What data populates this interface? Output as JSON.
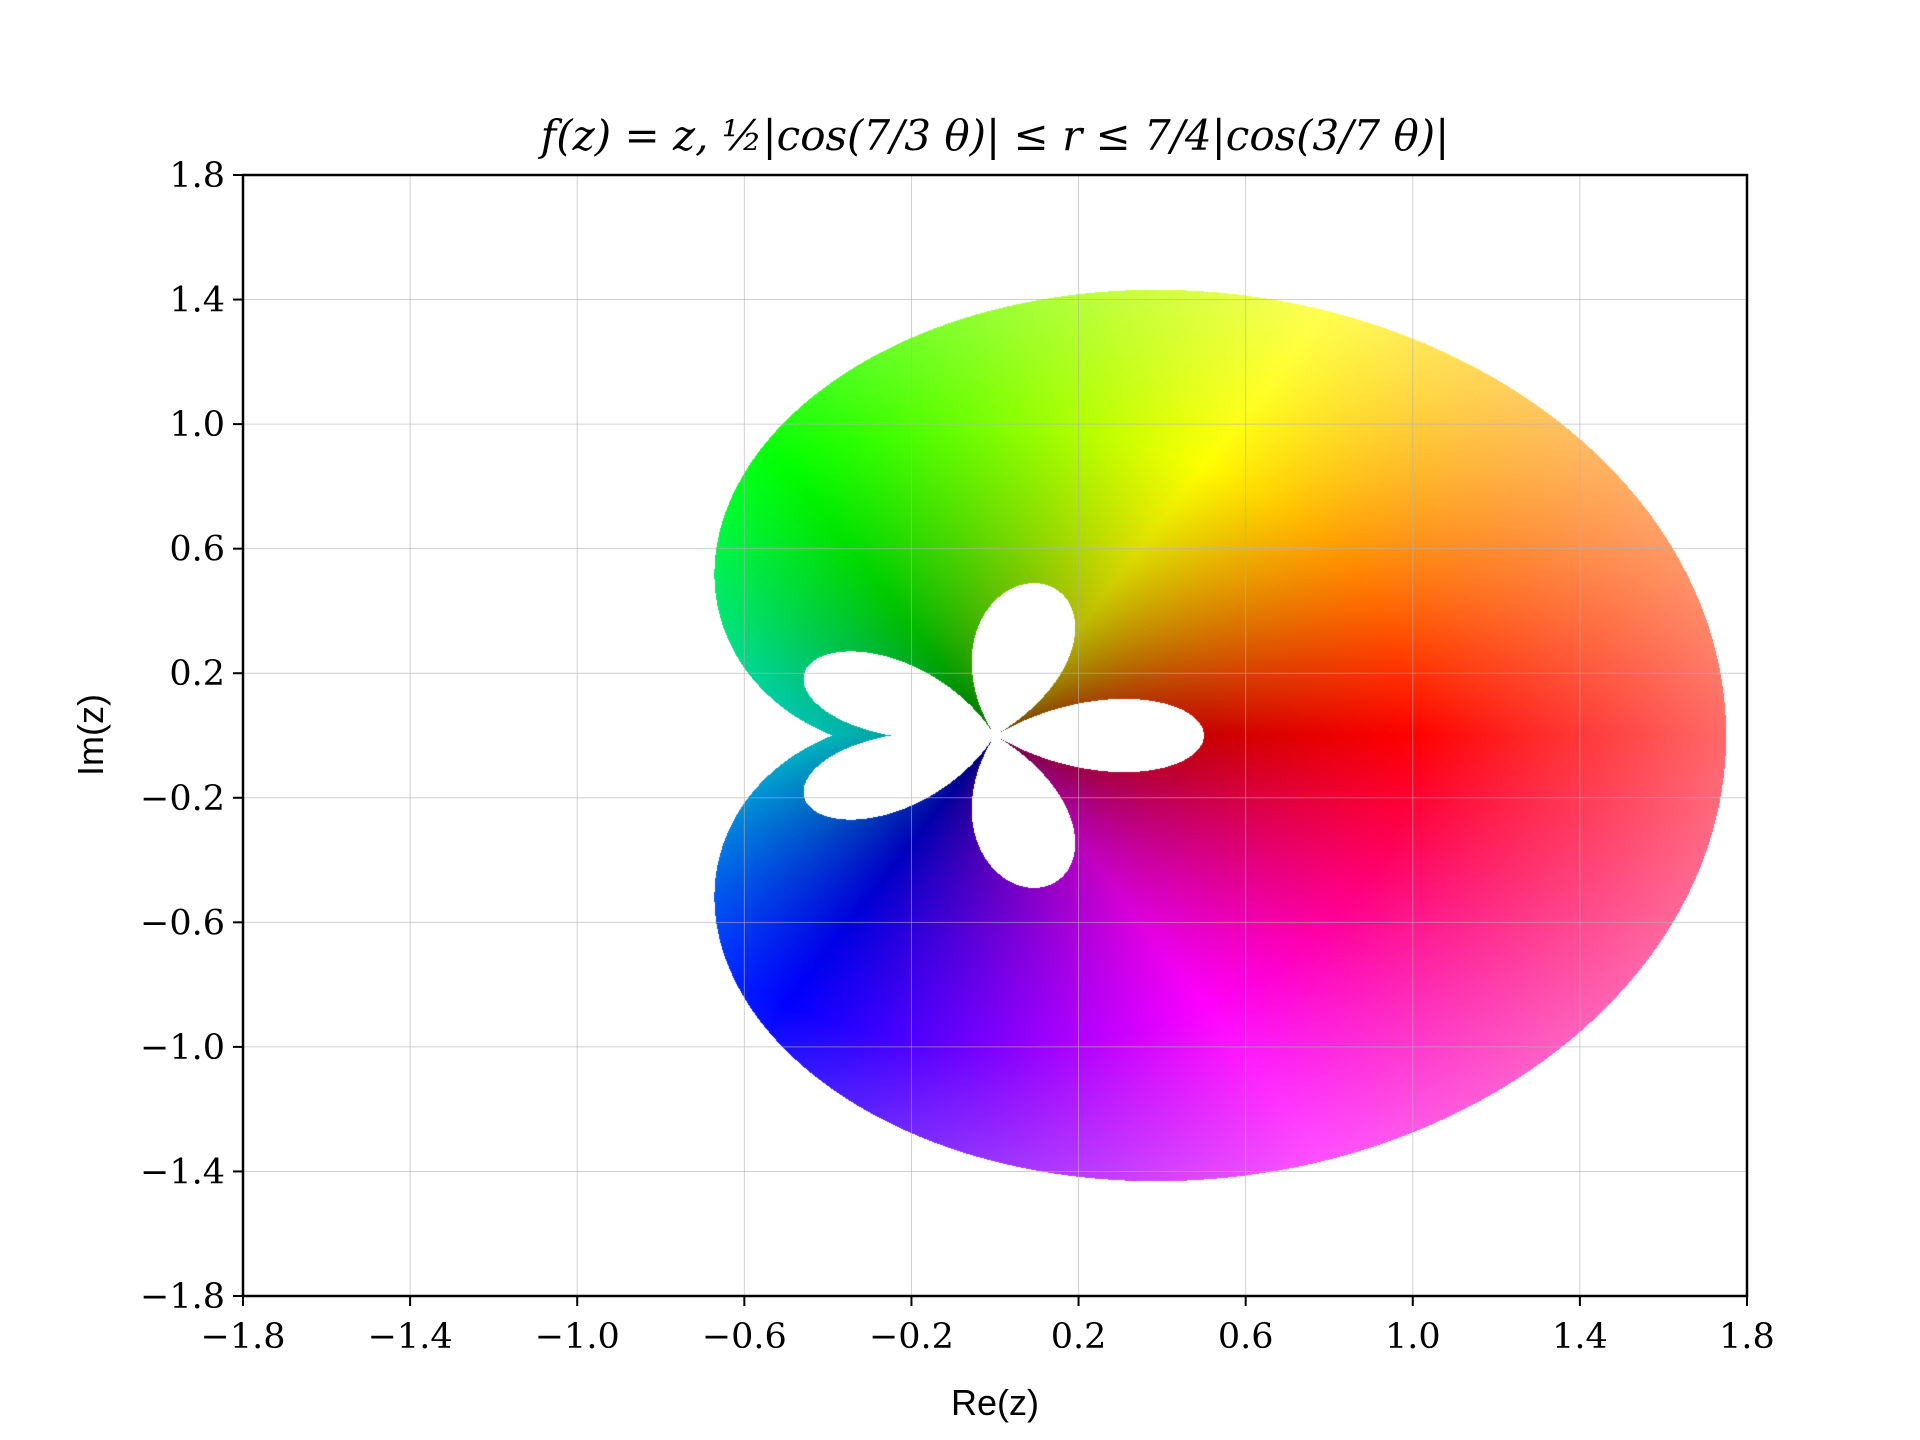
{
  "chart_data": {
    "type": "heatmap",
    "title": "f(z) = z,  ½|cos(7/3 θ)| ≤ r ≤ 7/4|cos(3/7 θ)|",
    "xlabel": "Re(z)",
    "ylabel": "Im(z)",
    "xlim": [
      -1.8,
      1.8
    ],
    "ylim": [
      -1.8,
      1.8
    ],
    "xticks": [
      -1.8,
      -1.4,
      -1.0,
      -0.6,
      -0.2,
      0.2,
      0.6,
      1.0,
      1.4,
      1.8
    ],
    "yticks": [
      -1.8,
      -1.4,
      -1.0,
      -0.6,
      -0.2,
      0.2,
      0.6,
      1.0,
      1.4,
      1.8
    ],
    "xtick_labels": [
      "−1.8",
      "−1.4",
      "−1.0",
      "−0.6",
      "−0.2",
      "0.2",
      "0.6",
      "1.0",
      "1.4",
      "1.8"
    ],
    "ytick_labels": [
      "−1.8",
      "−1.4",
      "−1.0",
      "−0.6",
      "−0.2",
      "0.2",
      "0.6",
      "1.0",
      "1.4",
      "1.8"
    ],
    "grid": true,
    "function": "f(z) = z",
    "domain_coloring": "hue = arg(z), brightness = |z|",
    "region": {
      "inner_radius": "1/2 |cos(7/3 θ)|",
      "outer_radius": "7/4 |cos(3/7 θ)|"
    }
  }
}
